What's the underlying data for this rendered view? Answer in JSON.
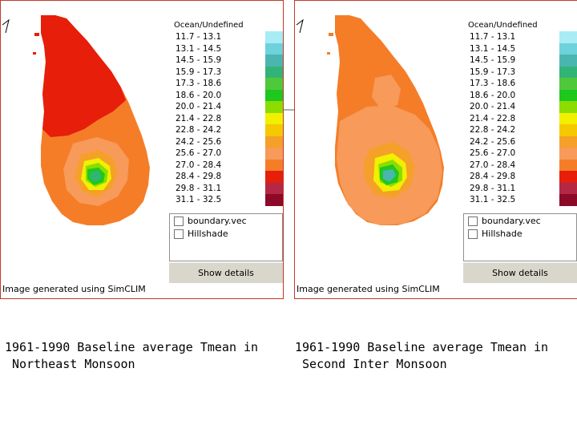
{
  "panels": [
    {
      "legend_header": "Ocean/Undefined",
      "legend": [
        {
          "label": "11.7 - 13.1",
          "color": "#a8ecf5"
        },
        {
          "label": "13.1 - 14.5",
          "color": "#6ed2dc"
        },
        {
          "label": "14.5 - 15.9",
          "color": "#4bb6b0"
        },
        {
          "label": "15.9 - 17.3",
          "color": "#32b478"
        },
        {
          "label": "17.3 - 18.6",
          "color": "#50c83c"
        },
        {
          "label": "18.6 - 20.0",
          "color": "#1ec81e"
        },
        {
          "label": "20.0 - 21.4",
          "color": "#8cdc00"
        },
        {
          "label": "21.4 - 22.8",
          "color": "#f0f000"
        },
        {
          "label": "22.8 - 24.2",
          "color": "#f5c800"
        },
        {
          "label": "24.2 - 25.6",
          "color": "#f5a028"
        },
        {
          "label": "25.6 - 27.0",
          "color": "#f79a5a"
        },
        {
          "label": "27.0 - 28.4",
          "color": "#f57d28"
        },
        {
          "label": "28.4 - 29.8",
          "color": "#e61e0a"
        },
        {
          "label": "29.8 - 31.1",
          "color": "#b42846"
        },
        {
          "label": "31.1 - 32.5",
          "color": "#8c0a28"
        }
      ],
      "layers": [
        {
          "label": "boundary.vec",
          "checked": false
        },
        {
          "label": "Hillshade",
          "checked": false
        }
      ],
      "show_details": "Show details",
      "credit": "Image generated using SimCLIM",
      "caption_line1": "1961-1990 Baseline average Tmean in",
      "caption_line2": " Northeast Monsoon"
    },
    {
      "legend_header": "Ocean/Undefined",
      "legend": [
        {
          "label": "11.7 - 13.1",
          "color": "#a8ecf5"
        },
        {
          "label": "13.1 - 14.5",
          "color": "#6ed2dc"
        },
        {
          "label": "14.5 - 15.9",
          "color": "#4bb6b0"
        },
        {
          "label": "15.9 - 17.3",
          "color": "#32b478"
        },
        {
          "label": "17.3 - 18.6",
          "color": "#50c83c"
        },
        {
          "label": "18.6 - 20.0",
          "color": "#1ec81e"
        },
        {
          "label": "20.0 - 21.4",
          "color": "#8cdc00"
        },
        {
          "label": "21.4 - 22.8",
          "color": "#f0f000"
        },
        {
          "label": "22.8 - 24.2",
          "color": "#f5c800"
        },
        {
          "label": "24.2 - 25.6",
          "color": "#f5a028"
        },
        {
          "label": "25.6 - 27.0",
          "color": "#f79a5a"
        },
        {
          "label": "27.0 - 28.4",
          "color": "#f57d28"
        },
        {
          "label": "28.4 - 29.8",
          "color": "#e61e0a"
        },
        {
          "label": "29.8 - 31.1",
          "color": "#b42846"
        },
        {
          "label": "31.1 - 32.5",
          "color": "#8c0a28"
        }
      ],
      "layers": [
        {
          "label": "boundary.vec",
          "checked": false
        },
        {
          "label": "Hillshade",
          "checked": false
        }
      ],
      "show_details": "Show details",
      "credit": "Image generated using SimCLIM",
      "caption_line1": "1961-1990 Baseline average Tmean in",
      "caption_line2": " Second Inter Monsoon"
    }
  ]
}
